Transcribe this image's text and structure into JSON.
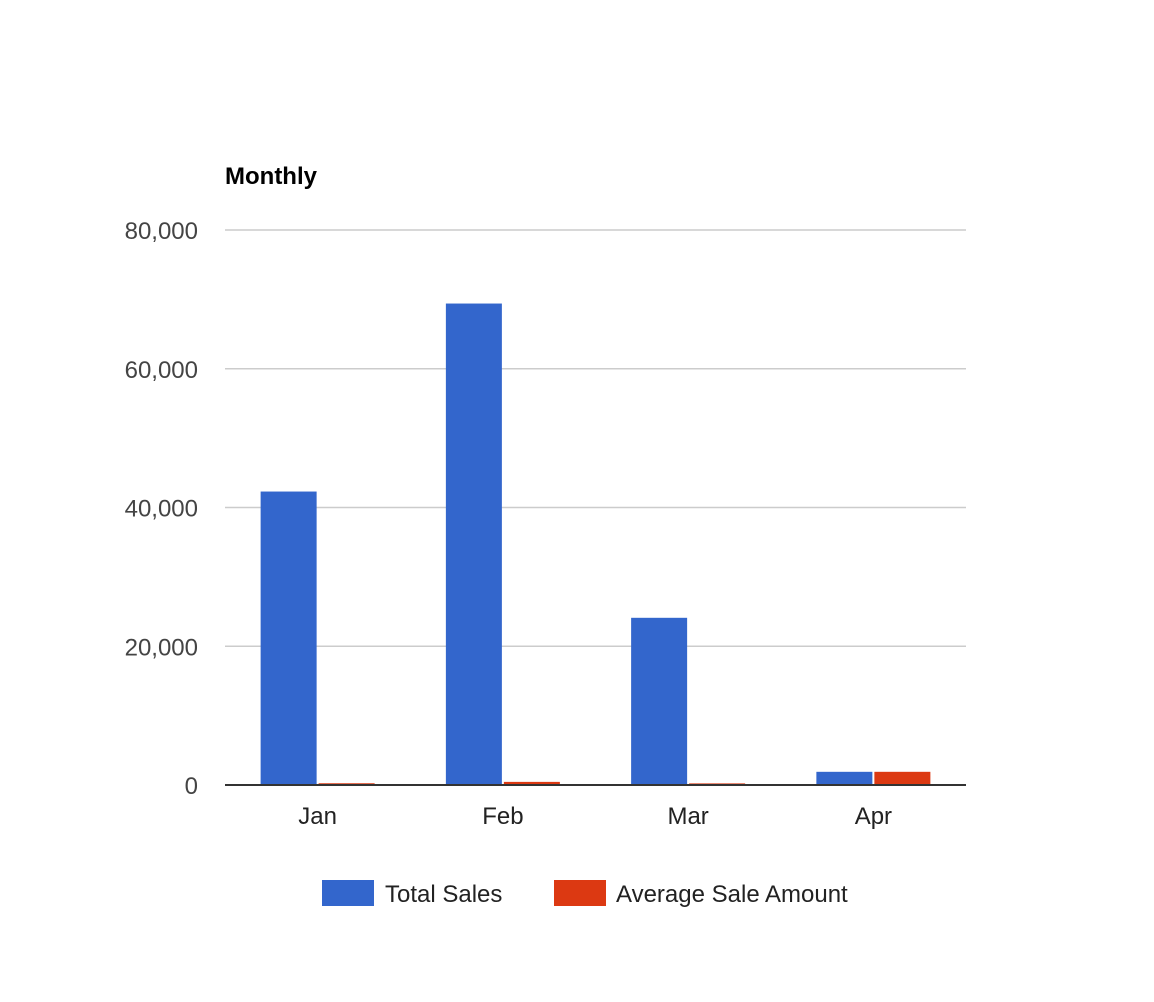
{
  "chart_data": {
    "type": "bar",
    "title": "Monthly",
    "categories": [
      "Jan",
      "Feb",
      "Mar",
      "Apr"
    ],
    "series": [
      {
        "name": "Total Sales",
        "color": "#3366cc",
        "values": [
          42300,
          69400,
          24100,
          1900
        ]
      },
      {
        "name": "Average Sale Amount",
        "color": "#dc3912",
        "values": [
          250,
          450,
          230,
          1900
        ]
      }
    ],
    "yticks": [
      "0",
      "20,000",
      "40,000",
      "60,000",
      "80,000"
    ],
    "ylim": [
      0,
      80000
    ],
    "grid": true,
    "legend": "bottom"
  }
}
